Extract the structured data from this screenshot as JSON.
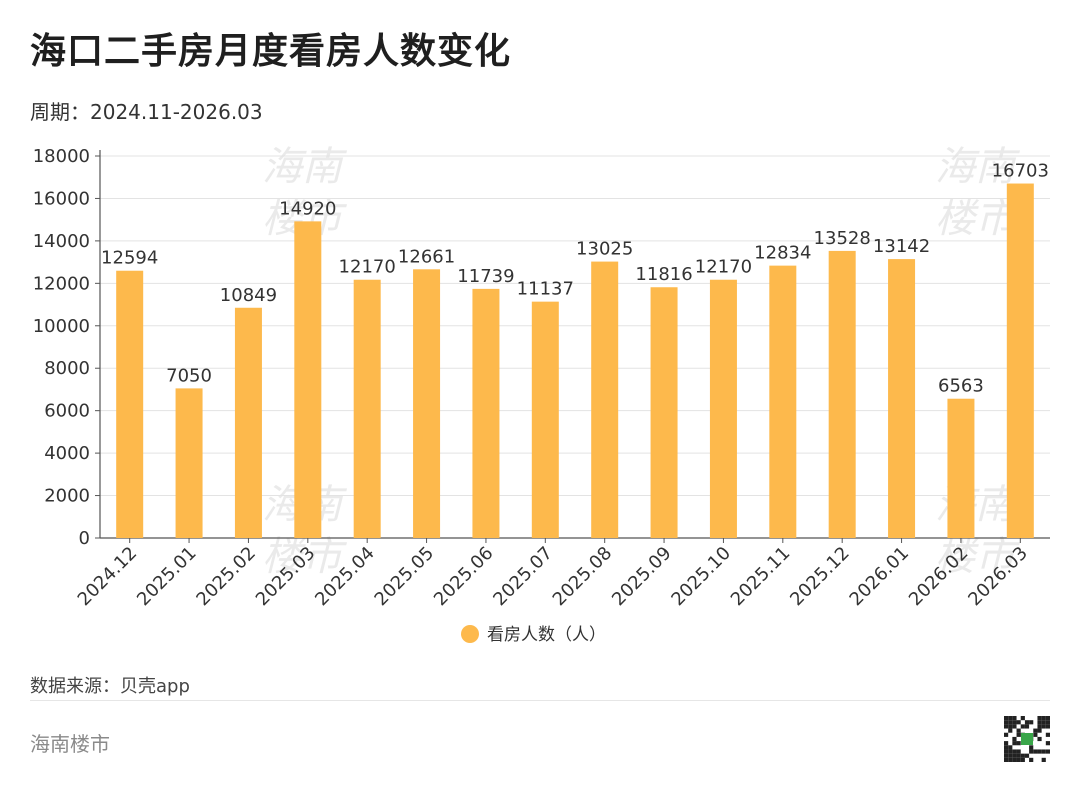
{
  "header": {
    "title": "海口二手房月度看房人数变化",
    "subtitle": "周期：2024.11-2026.03"
  },
  "colors": {
    "bar": "#FDB94C",
    "grid": "#e3e3e3",
    "axis": "#555555"
  },
  "chart_data": {
    "type": "bar",
    "categories": [
      "2024.12",
      "2025.01",
      "2025.02",
      "2025.03",
      "2025.04",
      "2025.05",
      "2025.06",
      "2025.07",
      "2025.08",
      "2025.09",
      "2025.10",
      "2025.11",
      "2025.12",
      "2026.01",
      "2026.02",
      "2026.03"
    ],
    "series": [
      {
        "name": "看房人数（人）",
        "values": [
          12594,
          7050,
          10849,
          14920,
          12170,
          12661,
          11739,
          11137,
          13025,
          11816,
          12170,
          12834,
          13528,
          13142,
          6563,
          16703
        ]
      }
    ],
    "ylim": [
      0,
      18000
    ],
    "yticks": [
      0,
      2000,
      4000,
      6000,
      8000,
      10000,
      12000,
      14000,
      16000,
      18000
    ],
    "grid": true,
    "legend": "bottom-center",
    "data_labels": true
  },
  "footer": {
    "source": "数据来源：贝壳app",
    "brand": "海南楼市"
  },
  "watermark": {
    "line1": "海南",
    "line2": "楼市"
  }
}
